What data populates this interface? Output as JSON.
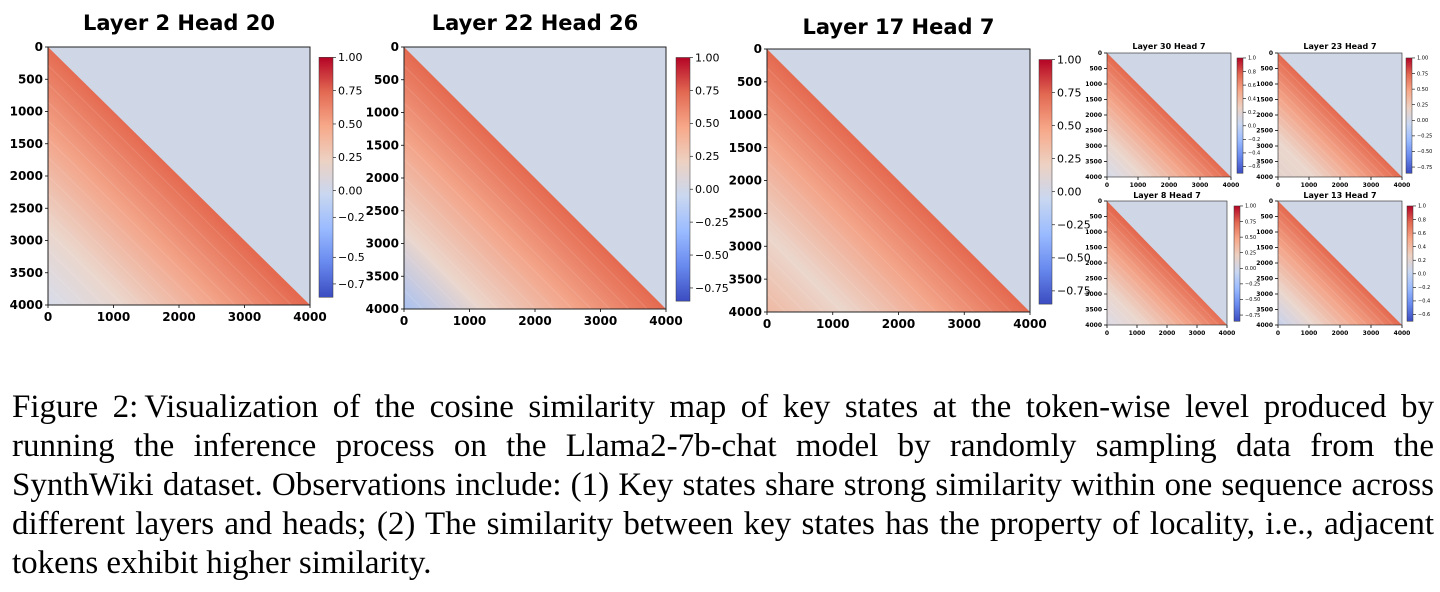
{
  "figure": {
    "caption_label": "Figure 2:",
    "caption_text": "Visualization of the cosine similarity map of key states at the token-wise level produced by running the inference process on the Llama2-7b-chat model by randomly sampling data from the SynthWiki dataset. Observations include: (1) Key states share strong similarity within one sequence across different layers and heads; (2) The similarity between key states has the property of locality, i.e., adjacent tokens exhibit higher similarity."
  },
  "colors": {
    "upper_fill": "#cfd7e6",
    "diag_red": "#e4694f",
    "mid_orange": "#f3a58a",
    "pale": "#ebd6cc",
    "blue_low": "#a9c1f0",
    "cmap": [
      "#3b4cc0",
      "#6889ee",
      "#9abbff",
      "#c9d7f0",
      "#edd1c2",
      "#f7a889",
      "#e26952",
      "#b40426"
    ]
  },
  "chart_data": [
    {
      "type": "heatmap",
      "title": "Layer 2 Head 20",
      "xlabel": "",
      "ylabel": "",
      "xlim": [
        0,
        4000
      ],
      "ylim": [
        4000,
        0
      ],
      "x_ticks": [
        "0",
        "1000",
        "2000",
        "3000",
        "4000"
      ],
      "y_ticks": [
        "0",
        "500",
        "1000",
        "1500",
        "2000",
        "2500",
        "3000",
        "3500",
        "4000"
      ],
      "colorbar_ticks": [
        "1.00",
        "0.75",
        "0.50",
        "0.25",
        "0.00",
        "−0.2",
        "−0.5",
        "−0.7"
      ],
      "colorbar_range": [
        -0.8,
        1.0
      ],
      "pattern": "lower-triangular; ~0.8 near diagonal fading to ~0.0 in lower-left"
    },
    {
      "type": "heatmap",
      "title": "Layer 22 Head 26",
      "xlabel": "",
      "ylabel": "",
      "xlim": [
        0,
        4000
      ],
      "ylim": [
        4000,
        0
      ],
      "x_ticks": [
        "0",
        "1000",
        "2000",
        "3000",
        "4000"
      ],
      "y_ticks": [
        "0",
        "500",
        "1000",
        "1500",
        "2000",
        "2500",
        "3000",
        "3500",
        "4000"
      ],
      "colorbar_ticks": [
        "1.00",
        "0.75",
        "0.50",
        "0.25",
        "0.00",
        "−0.25",
        "−0.50",
        "−0.75"
      ],
      "colorbar_range": [
        -0.85,
        1.0
      ],
      "pattern": "lower-triangular; ~0.7 near diagonal, negative (~-0.3) in lower-left"
    },
    {
      "type": "heatmap",
      "title": "Layer 17 Head 7",
      "xlabel": "",
      "ylabel": "",
      "xlim": [
        0,
        4000
      ],
      "ylim": [
        4000,
        0
      ],
      "x_ticks": [
        "0",
        "1000",
        "2000",
        "3000",
        "4000"
      ],
      "y_ticks": [
        "0",
        "500",
        "1000",
        "1500",
        "2000",
        "2500",
        "3000",
        "3500",
        "4000"
      ],
      "colorbar_ticks": [
        "1.00",
        "0.75",
        "0.50",
        "0.25",
        "0.00",
        "−0.25",
        "−0.50",
        "−0.75"
      ],
      "colorbar_range": [
        -0.85,
        1.0
      ],
      "pattern": "lower-triangular; ~0.75 near diagonal, ~0.4 in lower-left"
    },
    {
      "type": "heatmap",
      "title": "Layer 30 Head 7",
      "xlabel": "",
      "ylabel": "",
      "xlim": [
        0,
        4000
      ],
      "ylim": [
        4000,
        0
      ],
      "x_ticks": [
        "0",
        "1000",
        "2000",
        "3000",
        "4000"
      ],
      "y_ticks": [
        "0",
        "500",
        "1000",
        "1500",
        "2000",
        "2500",
        "3000",
        "3500",
        "4000"
      ],
      "colorbar_ticks": [
        "1.0",
        "0.8",
        "0.6",
        "0.4",
        "0.2",
        "0.0",
        "−0.2",
        "−0.4",
        "−0.6"
      ],
      "colorbar_range": [
        -0.7,
        1.0
      ],
      "pattern": "lower-triangular; ~0.7 near diagonal fading to ~0.0 in lower-left"
    },
    {
      "type": "heatmap",
      "title": "Layer 23 Head 7",
      "xlabel": "",
      "ylabel": "",
      "xlim": [
        0,
        4000
      ],
      "ylim": [
        4000,
        0
      ],
      "x_ticks": [
        "0",
        "1000",
        "2000",
        "3000",
        "4000"
      ],
      "y_ticks": [
        "0",
        "500",
        "1000",
        "1500",
        "2000",
        "2500",
        "3000",
        "3500",
        "4000"
      ],
      "colorbar_ticks": [
        "1.00",
        "0.75",
        "0.50",
        "0.25",
        "0.00",
        "−0.25",
        "−0.50",
        "−0.75"
      ],
      "colorbar_range": [
        -0.85,
        1.0
      ],
      "pattern": "lower-triangular; ~0.7 near diagonal fading to ~0.15 in lower-left"
    },
    {
      "type": "heatmap",
      "title": "Layer 8 Head 7",
      "xlabel": "",
      "ylabel": "",
      "xlim": [
        0,
        4000
      ],
      "ylim": [
        4000,
        0
      ],
      "x_ticks": [
        "0",
        "1000",
        "2000",
        "3000",
        "4000"
      ],
      "y_ticks": [
        "0",
        "500",
        "1000",
        "1500",
        "2000",
        "2500",
        "3000",
        "3500",
        "4000"
      ],
      "colorbar_ticks": [
        "1.00",
        "0.75",
        "0.50",
        "0.25",
        "0.00",
        "−0.25",
        "−0.50",
        "−0.75"
      ],
      "colorbar_range": [
        -0.85,
        1.0
      ],
      "pattern": "lower-triangular; ~0.8 near diagonal fading to ~0.05 in lower-left"
    },
    {
      "type": "heatmap",
      "title": "Layer 13 Head 7",
      "xlabel": "",
      "ylabel": "",
      "xlim": [
        0,
        4000
      ],
      "ylim": [
        4000,
        0
      ],
      "x_ticks": [
        "0",
        "1000",
        "2000",
        "3000",
        "4000"
      ],
      "y_ticks": [
        "0",
        "500",
        "1000",
        "1500",
        "2000",
        "2500",
        "3000",
        "3500",
        "4000"
      ],
      "colorbar_ticks": [
        "1.0",
        "0.8",
        "0.6",
        "0.4",
        "0.2",
        "0.0",
        "−0.2",
        "−0.4",
        "−0.6"
      ],
      "colorbar_range": [
        -0.7,
        1.0
      ],
      "pattern": "lower-triangular; ~0.85 near diagonal fading to ~-0.1 in lower-left"
    }
  ]
}
